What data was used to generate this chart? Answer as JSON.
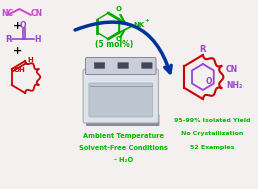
{
  "bg_color": "#f5f0f0",
  "malononitrile_color": "#cc44cc",
  "aldehyde_color": "#9944cc",
  "cyclohexenol_color": "#cc0000",
  "catalyst_color": "#00aa00",
  "product_outer_color": "#cc0000",
  "product_inner_color": "#9944cc",
  "arrow_color": "#003399",
  "text_green": "#00bb00",
  "text_conditions": [
    "Ambient Temperature",
    "Solvent-Free Conditions",
    "- H₂O"
  ],
  "text_yield": [
    "95-99% Isolated Yield",
    "No Crystallization",
    "52 Examples"
  ],
  "catalyst_label": "(5 mol%)"
}
